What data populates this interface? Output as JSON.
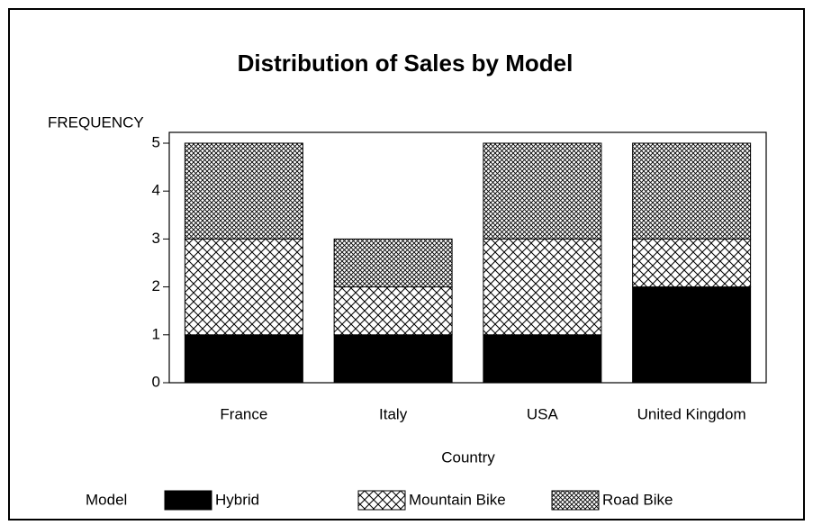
{
  "chart_data": {
    "type": "stacked-bar",
    "title": "Distribution of Sales by Model",
    "y_label": "FREQUENCY",
    "x_label": "Country",
    "legend_title": "Model",
    "categories": [
      "France",
      "Italy",
      "USA",
      "United Kingdom"
    ],
    "series": [
      {
        "name": "Hybrid",
        "color": "#000000",
        "pattern": "solid",
        "values": [
          1,
          1,
          1,
          2
        ]
      },
      {
        "name": "Mountain Bike",
        "color": "#000000",
        "pattern": "crosshatch",
        "values": [
          2,
          1,
          2,
          1
        ]
      },
      {
        "name": "Road Bike",
        "color": "#000000",
        "pattern": "fine-crosshatch",
        "values": [
          2,
          1,
          2,
          2
        ]
      }
    ],
    "ylim": [
      0,
      5
    ],
    "yticks": [
      0,
      1,
      2,
      3,
      4,
      5
    ],
    "legend": "bottom"
  }
}
